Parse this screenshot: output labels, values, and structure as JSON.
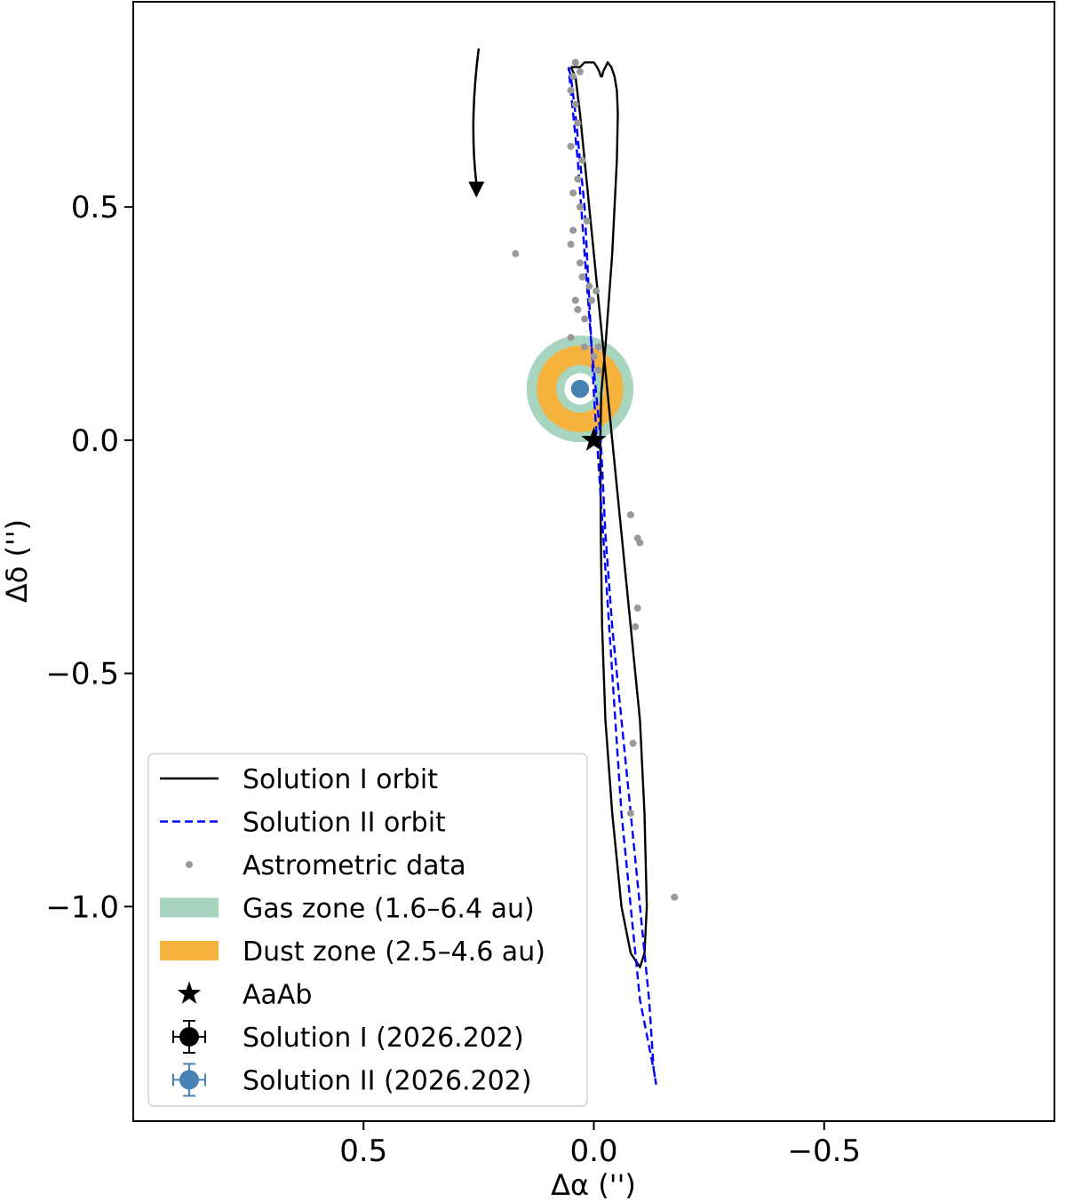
{
  "chart_data": {
    "type": "scatter",
    "title": "",
    "xlabel": "Δα ('')",
    "ylabel": "Δδ ('')",
    "xlim": [
      1.0,
      -1.0
    ],
    "ylim": [
      -1.46,
      0.94
    ],
    "x_ticks": [
      0.5,
      0.0,
      -0.5
    ],
    "x_tick_labels": [
      "0.5",
      "0.0",
      "−0.5"
    ],
    "y_ticks": [
      0.5,
      0.0,
      -0.5,
      -1.0
    ],
    "y_tick_labels": [
      "0.5",
      "0.0",
      "−0.5",
      "−1.0"
    ],
    "grid": false,
    "legend_position": "lower-left",
    "series": [
      {
        "name": "Solution I orbit",
        "style": "solid",
        "color": "#000000",
        "x": [
          0.05,
          0.04,
          0.03,
          0.02,
          0.01,
          0.0,
          -0.02,
          -0.04,
          -0.06,
          -0.08,
          -0.1,
          -0.11,
          -0.115,
          -0.11,
          -0.1,
          -0.08,
          -0.06,
          -0.04,
          -0.025,
          -0.018,
          -0.015,
          -0.014,
          -0.016,
          -0.025,
          -0.04,
          -0.05,
          -0.052,
          -0.05,
          -0.045,
          -0.038,
          -0.03,
          -0.025,
          -0.02,
          -0.018,
          -0.015,
          -0.012,
          -0.007,
          0.0,
          0.01,
          0.02,
          0.03,
          0.04,
          0.05
        ],
        "y": [
          0.8,
          0.78,
          0.7,
          0.6,
          0.5,
          0.4,
          0.2,
          0.0,
          -0.2,
          -0.4,
          -0.6,
          -0.8,
          -1.0,
          -1.1,
          -1.13,
          -1.1,
          -1.0,
          -0.8,
          -0.6,
          -0.4,
          -0.2,
          0.0,
          0.1,
          0.2,
          0.4,
          0.6,
          0.7,
          0.75,
          0.78,
          0.8,
          0.81,
          0.8,
          0.79,
          0.78,
          0.78,
          0.79,
          0.8,
          0.81,
          0.81,
          0.81,
          0.8,
          0.8,
          0.8
        ]
      },
      {
        "name": "Solution II orbit",
        "style": "dashed",
        "color": "#0000ff",
        "x": [
          0.055,
          0.05,
          0.04,
          0.03,
          0.02,
          0.01,
          0.0,
          -0.02,
          -0.04,
          -0.06,
          -0.08,
          -0.1,
          -0.12,
          -0.13,
          -0.135,
          -0.13,
          -0.12,
          -0.1,
          -0.08,
          -0.06,
          -0.04,
          -0.025,
          -0.015,
          -0.005,
          0.005,
          0.02,
          0.035,
          0.045,
          0.052,
          0.055
        ],
        "y": [
          0.8,
          0.78,
          0.7,
          0.6,
          0.5,
          0.3,
          0.1,
          -0.2,
          -0.5,
          -0.8,
          -1.0,
          -1.2,
          -1.3,
          -1.35,
          -1.38,
          -1.35,
          -1.2,
          -1.0,
          -0.8,
          -0.6,
          -0.4,
          -0.2,
          0.0,
          0.1,
          0.2,
          0.4,
          0.6,
          0.7,
          0.77,
          0.8
        ]
      },
      {
        "name": "Astrometric data",
        "style": "points",
        "color": "#999999",
        "x": [
          0.17,
          0.04,
          0.03,
          0.045,
          0.05,
          0.04,
          0.035,
          0.05,
          0.025,
          0.035,
          0.045,
          0.03,
          0.015,
          0.045,
          0.05,
          0.03,
          0.025,
          0.01,
          0.04,
          0.035,
          0.02,
          -0.005,
          0.005,
          -0.01,
          -0.01,
          0.05,
          0.02,
          0.0,
          -0.08,
          -0.095,
          -0.1,
          -0.095,
          -0.09,
          -0.085,
          -0.08,
          -0.175
        ],
        "y": [
          0.4,
          0.81,
          0.79,
          0.78,
          0.75,
          0.72,
          0.68,
          0.63,
          0.6,
          0.56,
          0.53,
          0.5,
          0.47,
          0.45,
          0.42,
          0.38,
          0.35,
          0.33,
          0.3,
          0.28,
          0.26,
          0.32,
          0.3,
          0.2,
          0.15,
          0.22,
          0.2,
          0.18,
          -0.16,
          -0.21,
          -0.22,
          -0.36,
          -0.4,
          -0.65,
          -0.8,
          -0.98
        ]
      }
    ],
    "zones": [
      {
        "name": "Gas zone (1.6–6.4 au)",
        "color": "#a8d5bf",
        "center": [
          0.03,
          0.11
        ],
        "inner_radius": 0.034,
        "outer_radius": 0.116
      },
      {
        "name": "Dust zone (2.5–4.6 au)",
        "color": "#f5b33d",
        "center": [
          0.03,
          0.11
        ],
        "inner_radius": 0.052,
        "outer_radius": 0.094
      }
    ],
    "markers": [
      {
        "name": "AaAb",
        "symbol": "star",
        "x": 0.0,
        "y": 0.0,
        "color": "#000000"
      },
      {
        "name": "Solution I (2026.202)",
        "symbol": "circle-errorbar",
        "x": 0.03,
        "y": 0.11,
        "color": "#000000"
      },
      {
        "name": "Solution II (2026.202)",
        "symbol": "circle-errorbar",
        "x": 0.03,
        "y": 0.11,
        "color": "#4682b4"
      }
    ],
    "arrow": {
      "from": [
        0.25,
        0.84
      ],
      "to": [
        0.255,
        0.52
      ],
      "meaning": "direction of motion"
    },
    "legend": [
      {
        "label": "Solution I orbit",
        "kind": "line-solid",
        "color": "#000000"
      },
      {
        "label": "Solution II orbit",
        "kind": "line-dashed",
        "color": "#0000ff"
      },
      {
        "label": "Astrometric data",
        "kind": "dot",
        "color": "#999999"
      },
      {
        "label": "Gas zone (1.6–6.4 au)",
        "kind": "patch",
        "color": "#a8d5bf"
      },
      {
        "label": "Dust zone (2.5–4.6 au)",
        "kind": "patch",
        "color": "#f5b33d"
      },
      {
        "label": "AaAb",
        "kind": "star",
        "color": "#000000"
      },
      {
        "label": "Solution I (2026.202)",
        "kind": "errorbar-circle",
        "color": "#000000"
      },
      {
        "label": "Solution II (2026.202)",
        "kind": "errorbar-circle",
        "color": "#4682b4"
      }
    ]
  }
}
